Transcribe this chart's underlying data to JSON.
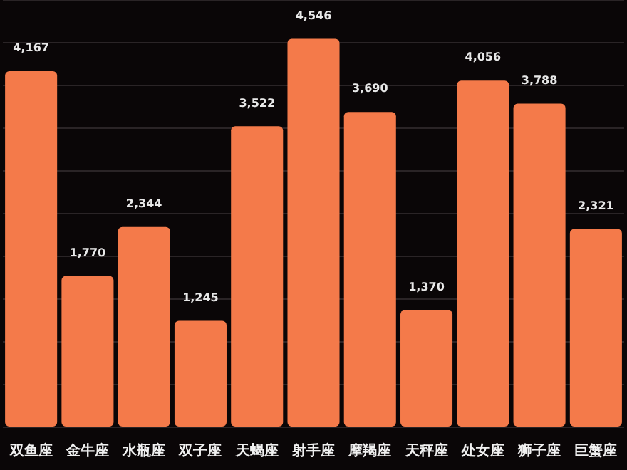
{
  "chart_data": {
    "type": "bar",
    "categories": [
      "双鱼座",
      "金牛座",
      "水瓶座",
      "双子座",
      "天蝎座",
      "射手座",
      "摩羯座",
      "天秤座",
      "处女座",
      "狮子座",
      "巨蟹座"
    ],
    "values": [
      4167,
      1770,
      2344,
      1245,
      3522,
      4546,
      3690,
      1370,
      4056,
      3788,
      2321
    ],
    "value_labels": [
      "4,167",
      "1,770",
      "2,344",
      "1,245",
      "3,522",
      "4,546",
      "3,690",
      "1,370",
      "4,056",
      "3,788",
      "2,321"
    ],
    "color": "#f47a4a",
    "grid": "y",
    "tick_labels": "x"
  }
}
